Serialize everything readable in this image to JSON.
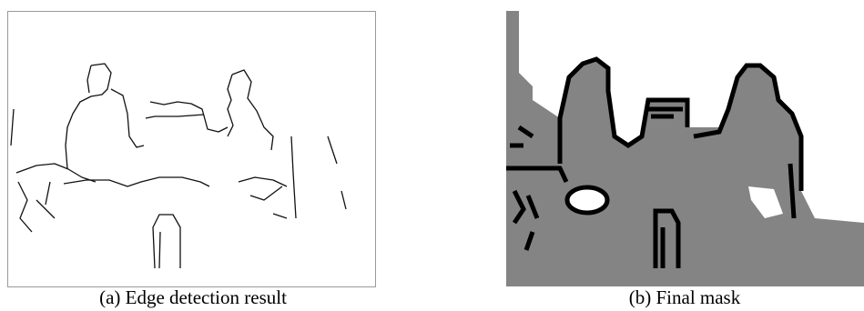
{
  "figure": {
    "panels": [
      {
        "caption": "(a) Edge detection result"
      },
      {
        "caption": "(b) Final mask"
      }
    ]
  }
}
